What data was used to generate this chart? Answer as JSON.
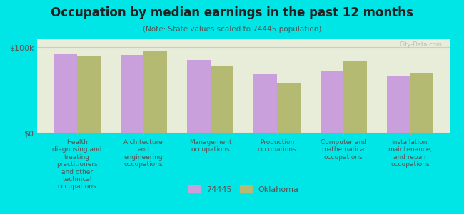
{
  "title": "Occupation by median earnings in the past 12 months",
  "subtitle": "(Note: State values scaled to 74445 population)",
  "background_color": "#00e5e5",
  "plot_bg_color": "#e8edda",
  "categories": [
    "Health\ndiagnosing and\ntreating\npractitioners\nand other\ntechnical\noccupations",
    "Architecture\nand\nengineering\noccupations",
    "Management\noccupations",
    "Production\noccupations",
    "Computer and\nmathematical\noccupations",
    "Installation,\nmaintenance,\nand repair\noccupations"
  ],
  "values_74445": [
    92000,
    91000,
    85000,
    68000,
    72000,
    67000
  ],
  "values_oklahoma": [
    89000,
    95000,
    78000,
    58000,
    83000,
    70000
  ],
  "ylim": [
    0,
    110000
  ],
  "yticks": [
    0,
    100000
  ],
  "ytick_labels": [
    "$0",
    "$100k"
  ],
  "color_74445": "#c9a0dc",
  "color_oklahoma": "#b5ba72",
  "legend_74445": "74445",
  "legend_oklahoma": "Oklahoma",
  "ylabel": "",
  "watermark": "City-Data.com"
}
